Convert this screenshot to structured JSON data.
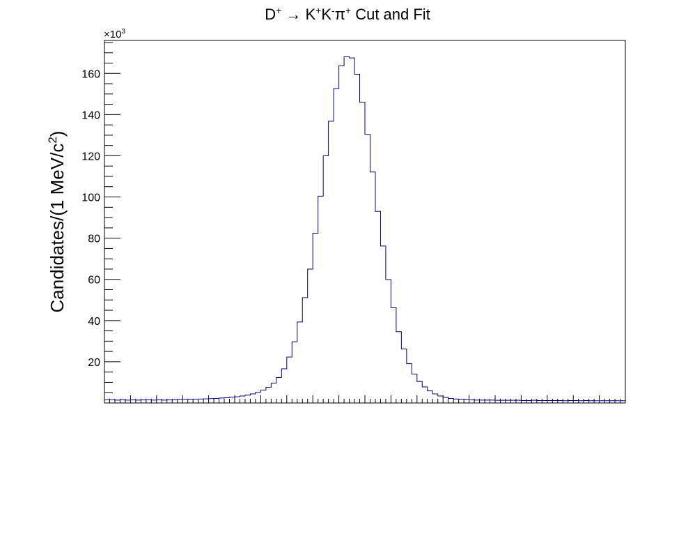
{
  "chart_data": {
    "type": "histogram",
    "title": {
      "parts": [
        {
          "text": "D",
          "style": "normal"
        },
        {
          "text": "+",
          "style": "sup"
        },
        {
          "text": " → K",
          "style": "normal"
        },
        {
          "text": "+",
          "style": "sup"
        },
        {
          "text": "K",
          "style": "normal"
        },
        {
          "text": "-",
          "style": "sup"
        },
        {
          "text": "π",
          "style": "normal"
        },
        {
          "text": "+",
          "style": "sup"
        },
        {
          "text": " Cut and Fit",
          "style": "normal"
        }
      ]
    },
    "ylabel": {
      "parts": [
        {
          "text": "Candidates/(1 MeV/c",
          "style": "normal"
        },
        {
          "text": "2",
          "style": "sup"
        },
        {
          "text": ")",
          "style": "normal"
        }
      ]
    },
    "y_multiplier": {
      "base": "×10",
      "exponent": "3"
    },
    "ylim": [
      0,
      176
    ],
    "y_ticks": [
      20,
      40,
      60,
      80,
      100,
      120,
      140,
      160
    ],
    "y_minor_step": 5,
    "x_bins": 100,
    "x_major_every": 5,
    "x_minor_every": 1,
    "line_color": "#000080",
    "values": [
      1.5,
      1.5,
      1.4,
      1.5,
      1.4,
      1.5,
      1.4,
      1.5,
      1.5,
      1.4,
      1.5,
      1.4,
      1.5,
      1.5,
      1.6,
      1.6,
      1.7,
      1.8,
      1.9,
      2.0,
      2.1,
      2.2,
      2.4,
      2.6,
      2.8,
      3.0,
      3.4,
      3.8,
      4.4,
      5.2,
      6.2,
      7.6,
      9.6,
      12.4,
      16.6,
      22.3,
      29.7,
      39.3,
      51.1,
      65.0,
      82.4,
      100.4,
      120.0,
      136.8,
      152.6,
      163.7,
      168.1,
      167.5,
      159.6,
      146.0,
      130.4,
      112.1,
      93.0,
      76.2,
      59.9,
      46.2,
      34.6,
      26.2,
      19.1,
      14.0,
      10.4,
      7.8,
      5.9,
      4.4,
      3.4,
      2.7,
      2.2,
      1.9,
      1.7,
      1.6,
      1.5,
      1.4,
      1.4,
      1.4,
      1.4,
      1.3,
      1.3,
      1.3,
      1.3,
      1.3,
      1.2,
      1.2,
      1.3,
      1.2,
      1.2,
      1.2,
      1.2,
      1.2,
      1.1,
      1.2,
      1.2,
      1.1,
      1.2,
      1.1,
      1.1,
      1.1,
      1.1,
      1.1,
      1.1,
      1.1
    ]
  }
}
